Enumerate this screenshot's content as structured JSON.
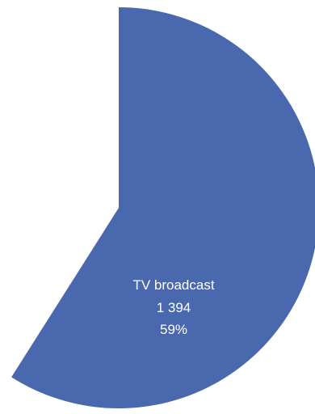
{
  "chart_data": {
    "type": "pie",
    "slices": [
      {
        "label": "TV broadcast",
        "value_text": "1 394",
        "percent_text": "59%",
        "value": 1394,
        "percent": 59,
        "color": "#4a68ad"
      }
    ],
    "legend": "none",
    "background": "#ffffff"
  }
}
